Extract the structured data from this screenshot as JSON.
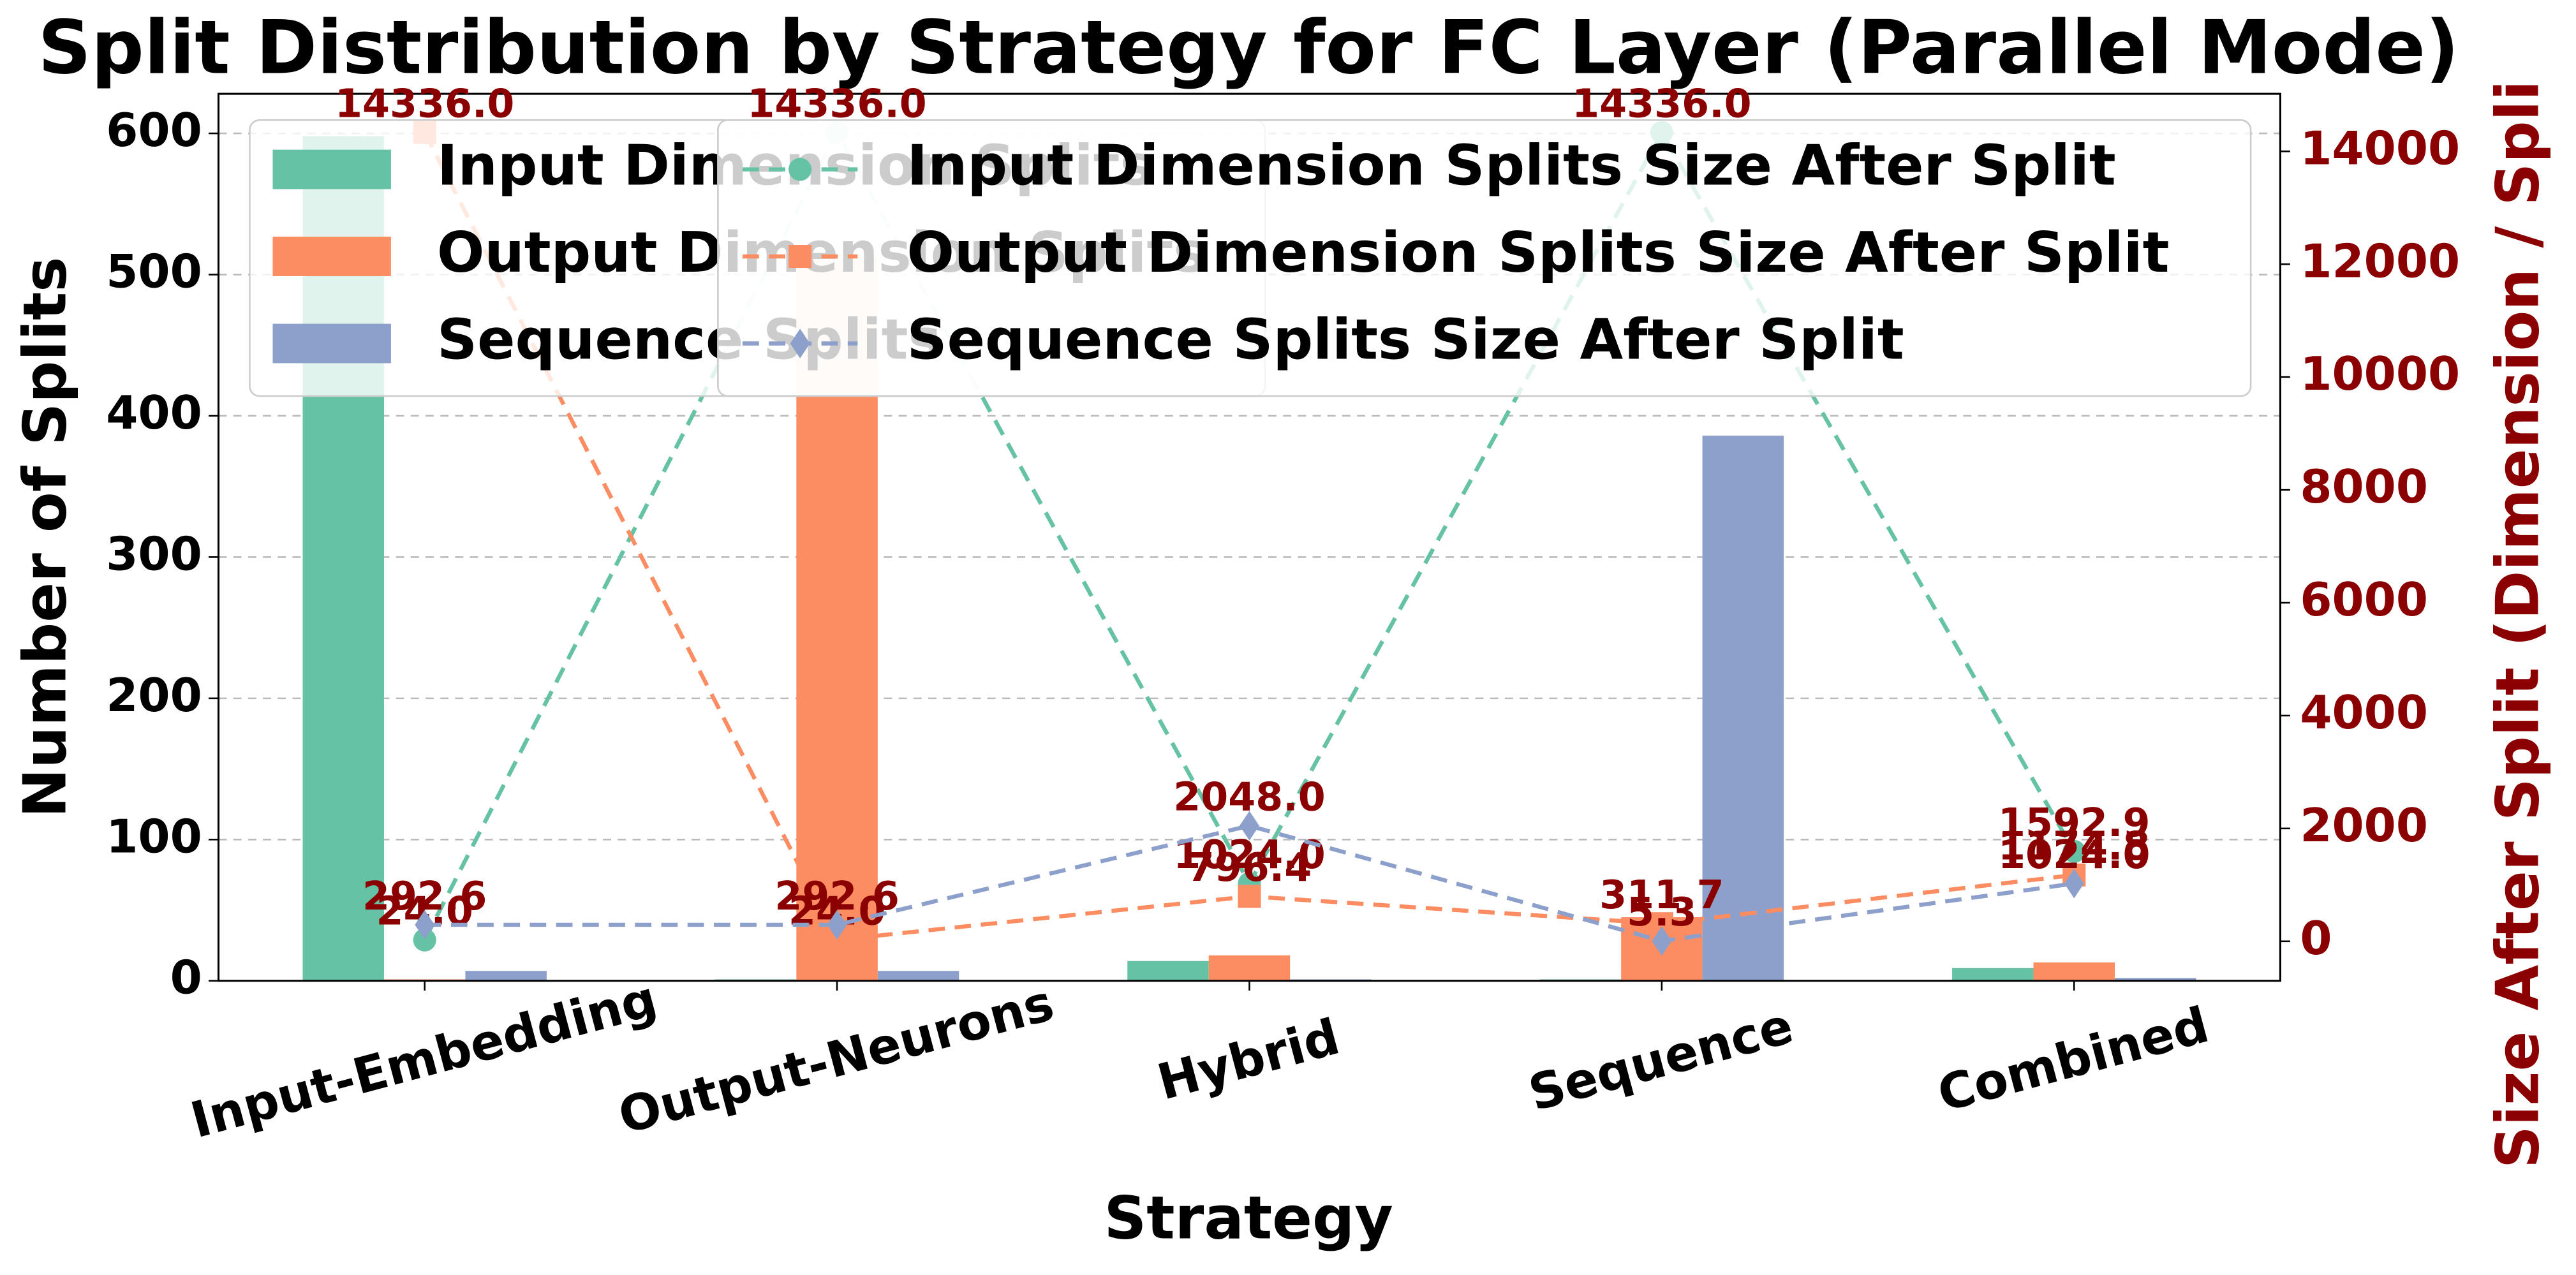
{
  "chart_data": {
    "type": "bar",
    "title": "Split Distribution by Strategy for FC Layer (Parallel Mode)",
    "x_label": "Strategy",
    "y_label": "Number of Splits",
    "y2_label": "Size After Split (Dimension / Spli",
    "categories": [
      "Input-Embedding",
      "Output-Neurons",
      "Hybrid",
      "Sequence",
      "Combined"
    ],
    "ylim": [
      0,
      628
    ],
    "yticks": [
      0,
      100,
      200,
      300,
      400,
      500,
      600
    ],
    "y2lim": [
      -700,
      15020
    ],
    "y2ticks": [
      0,
      2000,
      4000,
      6000,
      8000,
      10000,
      12000,
      14000
    ],
    "grid": true,
    "series": [
      {
        "name": "Input Dimension Splits",
        "type": "bar",
        "color": "#66c2a5",
        "values": [
          598,
          1,
          14,
          1,
          9
        ]
      },
      {
        "name": "Output Dimension Splits",
        "type": "bar",
        "color": "#fc8d62",
        "values": [
          1,
          512,
          18,
          45,
          13
        ]
      },
      {
        "name": "Sequence Splits",
        "type": "bar",
        "color": "#8da0cb",
        "values": [
          7,
          7,
          1,
          386,
          2
        ]
      },
      {
        "name": "Input Dimension Splits Size After Split",
        "type": "line",
        "axis": "y2",
        "marker": "circle",
        "color": "#66c2a5",
        "values": [
          24,
          14336,
          1024,
          14336,
          1592.9
        ],
        "value_labels": [
          "24.0",
          "14336.0",
          "1024.0",
          "14336.0",
          "1592.9"
        ]
      },
      {
        "name": "Output Dimension Splits Size After Split",
        "type": "line",
        "axis": "y2",
        "marker": "square",
        "color": "#fc8d62",
        "values": [
          14336,
          24,
          796.4,
          311.7,
          1174.8
        ],
        "value_labels": [
          "14336.0",
          "24.0",
          "796.4",
          "311.7",
          "1174.8"
        ]
      },
      {
        "name": "Sequence Splits Size After Split",
        "type": "line",
        "axis": "y2",
        "marker": "diamond",
        "color": "#8da0cb",
        "values": [
          292.6,
          292.6,
          2048,
          5.3,
          1024
        ],
        "value_labels": [
          "292.6",
          "292.6",
          "2048.0",
          "5.3",
          "1024.0"
        ]
      }
    ]
  }
}
